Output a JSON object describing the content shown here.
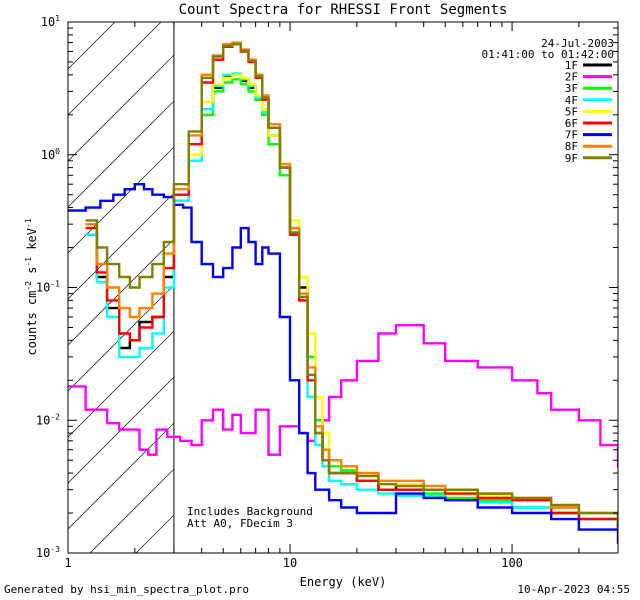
{
  "chart_data": {
    "type": "line",
    "title": "Count Spectra for RHESSI Front Segments",
    "date": "24-Jul-2003",
    "time_range": "01:41:00 to 01:42:00",
    "xlabel": "Energy (keV)",
    "ylabel_base": "counts cm",
    "ylabel_exp1": "-2",
    "ylabel_mid": " s",
    "ylabel_exp2": "-1",
    "ylabel_tail": " keV",
    "ylabel_exp3": "-1",
    "xscale": "log",
    "yscale": "log",
    "xlim": [
      1,
      300
    ],
    "ylim": [
      0.001,
      10
    ],
    "x_ticks": [
      {
        "value": 1,
        "label": "1"
      },
      {
        "value": 10,
        "label": "10"
      },
      {
        "value": 100,
        "label": "100"
      }
    ],
    "y_ticks": [
      {
        "value": 10,
        "base": "10",
        "exp": "1"
      },
      {
        "value": 1,
        "base": "10",
        "exp": "0"
      },
      {
        "value": 0.1,
        "base": "10",
        "exp": "-1"
      },
      {
        "value": 0.01,
        "base": "10",
        "exp": "-2"
      },
      {
        "value": 0.001,
        "base": "10",
        "exp": "-3"
      }
    ],
    "excluded_region": {
      "from": 1,
      "to": 3,
      "style": "hatched"
    },
    "annotations": [
      "Includes Background",
      "Att A0, FDecim 3"
    ],
    "legend_position": "top-right",
    "series": [
      {
        "name": "1F",
        "color": "#000000",
        "x": [
          1.2,
          1.35,
          1.5,
          1.7,
          1.9,
          2.1,
          2.4,
          2.7,
          3.0,
          3.5,
          4.0,
          4.5,
          5.0,
          5.5,
          6.0,
          6.5,
          7.0,
          7.5,
          8.0,
          9.0,
          10,
          11,
          12,
          13,
          14,
          15,
          17,
          20,
          25,
          30,
          40,
          50,
          70,
          100,
          150,
          200,
          300
        ],
        "y": [
          0.25,
          0.12,
          0.07,
          0.035,
          0.04,
          0.055,
          0.06,
          0.12,
          0.45,
          0.9,
          2.2,
          3.2,
          3.9,
          4.0,
          3.6,
          3.2,
          2.6,
          2.0,
          1.4,
          0.8,
          0.28,
          0.1,
          0.03,
          0.01,
          0.006,
          0.004,
          0.004,
          0.0035,
          0.003,
          0.0032,
          0.003,
          0.003,
          0.0025,
          0.0025,
          0.002,
          0.0018,
          0.0015
        ]
      },
      {
        "name": "2F",
        "color": "#ff00ff",
        "x": [
          1.0,
          1.2,
          1.5,
          1.7,
          1.9,
          2.1,
          2.3,
          2.5,
          2.8,
          3.2,
          3.6,
          4.0,
          4.5,
          5.0,
          5.5,
          6.0,
          7.0,
          8.0,
          9.0,
          10,
          11,
          12,
          13,
          14,
          15,
          17,
          20,
          25,
          30,
          40,
          50,
          70,
          100,
          130,
          150,
          200,
          250,
          300
        ],
        "y": [
          0.018,
          0.012,
          0.0095,
          0.0085,
          0.0085,
          0.006,
          0.0055,
          0.0085,
          0.0075,
          0.007,
          0.0065,
          0.01,
          0.012,
          0.0085,
          0.011,
          0.008,
          0.012,
          0.0055,
          0.009,
          0.009,
          0.008,
          0.007,
          0.008,
          0.01,
          0.015,
          0.02,
          0.028,
          0.045,
          0.052,
          0.038,
          0.028,
          0.025,
          0.02,
          0.016,
          0.012,
          0.01,
          0.0065,
          0.0045
        ]
      },
      {
        "name": "3F",
        "color": "#00ff00",
        "x": [
          3.0,
          3.5,
          4.0,
          4.5,
          5.0,
          5.5,
          6.0,
          6.5,
          7.0,
          7.5,
          8.0,
          9.0,
          10,
          11,
          12,
          13,
          14,
          15,
          17,
          20,
          25,
          30,
          40,
          50,
          70,
          100,
          150,
          200,
          300
        ],
        "y": [
          0.5,
          0.9,
          2.0,
          3.0,
          3.5,
          3.7,
          3.4,
          3.0,
          2.6,
          2.0,
          1.2,
          0.7,
          0.25,
          0.09,
          0.03,
          0.01,
          0.006,
          0.0045,
          0.0042,
          0.0035,
          0.003,
          0.003,
          0.0028,
          0.0026,
          0.0025,
          0.0022,
          0.002,
          0.0018,
          0.0015
        ]
      },
      {
        "name": "4F",
        "color": "#00ffff",
        "x": [
          1.2,
          1.35,
          1.5,
          1.7,
          1.9,
          2.1,
          2.4,
          2.7,
          3.0,
          3.5,
          4.0,
          4.5,
          5.0,
          5.5,
          6.0,
          6.5,
          7.0,
          7.5,
          8.0,
          9.0,
          10,
          11,
          12,
          13,
          14,
          15,
          17,
          20,
          25,
          30,
          40,
          50,
          70,
          100,
          150,
          200,
          300
        ],
        "y": [
          0.25,
          0.11,
          0.06,
          0.03,
          0.03,
          0.035,
          0.045,
          0.1,
          0.45,
          0.9,
          2.2,
          3.3,
          4.0,
          4.1,
          3.7,
          3.3,
          2.7,
          2.1,
          1.4,
          0.8,
          0.26,
          0.08,
          0.015,
          0.0065,
          0.0045,
          0.0035,
          0.0033,
          0.003,
          0.0028,
          0.0027,
          0.0027,
          0.0025,
          0.0024,
          0.0022,
          0.002,
          0.0018,
          0.0015
        ]
      },
      {
        "name": "5F",
        "color": "#ffff00",
        "x": [
          3.0,
          3.5,
          4.0,
          4.5,
          5.0,
          5.5,
          6.0,
          6.5,
          7.0,
          7.5,
          8.0,
          9.0,
          10,
          11,
          12,
          13,
          14,
          15,
          17,
          20,
          25,
          30,
          40,
          50,
          70,
          100,
          150,
          200,
          300
        ],
        "y": [
          0.6,
          1.0,
          2.5,
          3.4,
          3.8,
          4.0,
          3.8,
          3.4,
          2.8,
          2.2,
          1.4,
          0.85,
          0.32,
          0.12,
          0.045,
          0.015,
          0.008,
          0.005,
          0.0045,
          0.004,
          0.0035,
          0.0033,
          0.003,
          0.0028,
          0.0027,
          0.0025,
          0.0022,
          0.002,
          0.0018
        ]
      },
      {
        "name": "6F",
        "color": "#ff0000",
        "x": [
          1.2,
          1.35,
          1.5,
          1.7,
          1.9,
          2.1,
          2.4,
          2.7,
          3.0,
          3.5,
          4.0,
          4.5,
          5.0,
          5.5,
          6.0,
          6.5,
          7.0,
          7.5,
          8.0,
          9.0,
          10,
          11,
          12,
          13,
          14,
          15,
          17,
          20,
          25,
          30,
          40,
          50,
          70,
          100,
          150,
          200,
          300
        ],
        "y": [
          0.28,
          0.13,
          0.08,
          0.045,
          0.04,
          0.05,
          0.06,
          0.14,
          0.5,
          1.2,
          3.5,
          5.2,
          6.5,
          6.8,
          6.0,
          5.0,
          3.8,
          2.6,
          1.6,
          0.8,
          0.25,
          0.08,
          0.02,
          0.008,
          0.005,
          0.004,
          0.004,
          0.0035,
          0.003,
          0.003,
          0.003,
          0.0028,
          0.0026,
          0.0025,
          0.002,
          0.0018,
          0.0015
        ]
      },
      {
        "name": "7F",
        "color": "#0000ff",
        "x": [
          1.0,
          1.2,
          1.4,
          1.6,
          1.8,
          2.0,
          2.2,
          2.4,
          2.7,
          3.0,
          3.3,
          3.6,
          4.0,
          4.5,
          5.0,
          5.5,
          6.0,
          6.5,
          7.0,
          7.5,
          8.0,
          9.0,
          10,
          11,
          12,
          13,
          14,
          15,
          17,
          20,
          25,
          30,
          40,
          50,
          70,
          100,
          150,
          200,
          300
        ],
        "y": [
          0.38,
          0.4,
          0.45,
          0.5,
          0.55,
          0.6,
          0.55,
          0.5,
          0.48,
          0.42,
          0.4,
          0.22,
          0.15,
          0.12,
          0.14,
          0.2,
          0.28,
          0.22,
          0.15,
          0.2,
          0.18,
          0.06,
          0.02,
          0.008,
          0.004,
          0.003,
          0.003,
          0.0025,
          0.0022,
          0.002,
          0.002,
          0.0028,
          0.0026,
          0.0025,
          0.0022,
          0.002,
          0.0018,
          0.0015,
          0.0012
        ]
      },
      {
        "name": "8F",
        "color": "#ff8000",
        "x": [
          1.2,
          1.35,
          1.5,
          1.7,
          1.9,
          2.1,
          2.4,
          2.7,
          3.0,
          3.5,
          4.0,
          4.5,
          5.0,
          5.5,
          6.0,
          6.5,
          7.0,
          7.5,
          8.0,
          9.0,
          10,
          11,
          12,
          13,
          14,
          15,
          17,
          20,
          25,
          30,
          40,
          50,
          70,
          100,
          150,
          200,
          300
        ],
        "y": [
          0.3,
          0.15,
          0.1,
          0.07,
          0.06,
          0.07,
          0.09,
          0.18,
          0.55,
          1.4,
          4.0,
          5.6,
          6.8,
          7.0,
          6.2,
          5.2,
          4.0,
          2.8,
          1.7,
          0.85,
          0.28,
          0.09,
          0.025,
          0.009,
          0.006,
          0.005,
          0.0045,
          0.004,
          0.0035,
          0.0035,
          0.0032,
          0.003,
          0.0028,
          0.0026,
          0.0022,
          0.002,
          0.0017
        ]
      },
      {
        "name": "9F",
        "color": "#808000",
        "x": [
          1.2,
          1.35,
          1.5,
          1.7,
          1.9,
          2.1,
          2.4,
          2.7,
          3.0,
          3.5,
          4.0,
          4.5,
          5.0,
          5.5,
          6.0,
          6.5,
          7.0,
          7.5,
          8.0,
          9.0,
          10,
          11,
          12,
          13,
          14,
          15,
          17,
          20,
          25,
          30,
          40,
          50,
          70,
          100,
          150,
          200,
          300
        ],
        "y": [
          0.32,
          0.2,
          0.15,
          0.12,
          0.1,
          0.12,
          0.15,
          0.22,
          0.6,
          1.5,
          3.8,
          5.5,
          6.6,
          6.8,
          6.1,
          5.1,
          3.9,
          2.7,
          1.6,
          0.8,
          0.26,
          0.085,
          0.022,
          0.008,
          0.005,
          0.004,
          0.004,
          0.0038,
          0.0033,
          0.0032,
          0.003,
          0.003,
          0.0028,
          0.0026,
          0.0023,
          0.002,
          0.0017
        ]
      }
    ]
  },
  "footer": {
    "generated_by": "Generated by hsi_min_spectra_plot.pro",
    "timestamp": "10-Apr-2023 04:55"
  }
}
